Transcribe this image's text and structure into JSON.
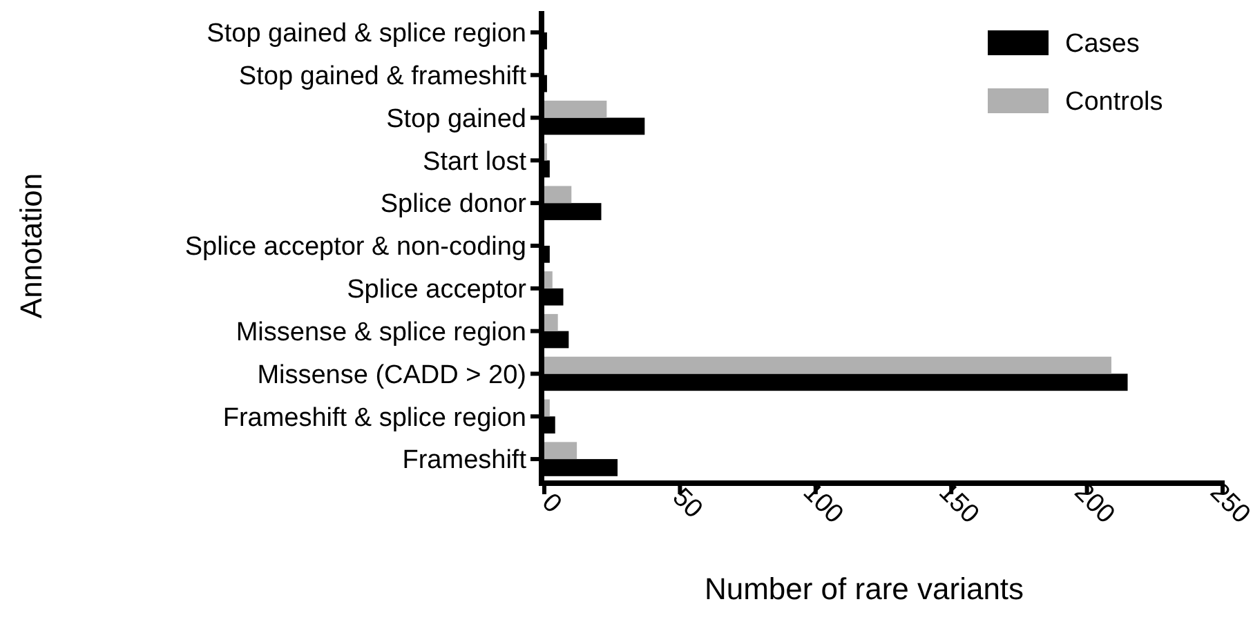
{
  "chart_data": {
    "type": "bar",
    "orientation": "horizontal",
    "xlabel": "Number of rare variants",
    "ylabel": "Annotation",
    "categories": [
      "Stop gained & splice region",
      "Stop gained & frameshift",
      "Stop gained",
      "Start lost",
      "Splice donor",
      "Splice acceptor & non-coding",
      "Splice acceptor",
      "Missense & splice region",
      "Missense (CADD > 20)",
      "Frameshift & splice region",
      "Frameshift"
    ],
    "series": [
      {
        "name": "Cases",
        "color": "#000000",
        "values": [
          1,
          1,
          37,
          2,
          21,
          2,
          7,
          9,
          215,
          4,
          27
        ]
      },
      {
        "name": "Controls",
        "color": "#b0b0b0",
        "values": [
          0,
          0,
          23,
          1,
          10,
          0,
          3,
          5,
          209,
          2,
          12
        ]
      }
    ],
    "xlim": [
      0,
      250
    ],
    "xticks": [
      0,
      50,
      100,
      150,
      200,
      250
    ],
    "grid": false,
    "legend": "top right"
  }
}
